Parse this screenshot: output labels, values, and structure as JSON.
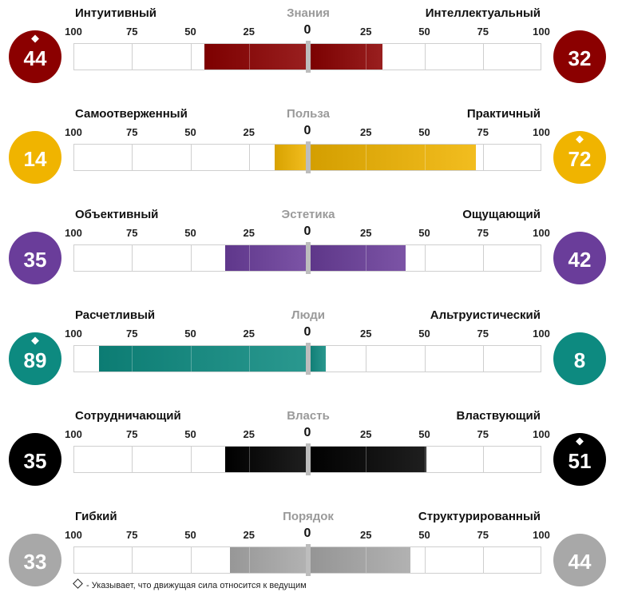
{
  "colors": {
    "knowledge": "#8b0000",
    "utility": "#f0b400",
    "aesthetics": "#6a3d9a",
    "people": "#0d8a80",
    "power": "#000000",
    "order": "#a8a8a8"
  },
  "chart_data": {
    "type": "bar",
    "subtype": "diverging",
    "axis_ticks": [
      "100",
      "75",
      "50",
      "25",
      "0",
      "25",
      "50",
      "75",
      "100"
    ],
    "range": [
      -100,
      100
    ],
    "series": [
      {
        "name": "Знания",
        "left_label": "Интуитивный",
        "right_label": "Интеллектуальный",
        "left_value": 44,
        "right_value": 32,
        "leading": "left",
        "color": "#8b0000"
      },
      {
        "name": "Польза",
        "left_label": "Самоотверженный",
        "right_label": "Практичный",
        "left_value": 14,
        "right_value": 72,
        "leading": "right",
        "color": "#f0b400"
      },
      {
        "name": "Эстетика",
        "left_label": "Объективный",
        "right_label": "Ощущающий",
        "left_value": 35,
        "right_value": 42,
        "leading": "",
        "color": "#6a3d9a"
      },
      {
        "name": "Люди",
        "left_label": "Расчетливый",
        "right_label": "Альтруистический",
        "left_value": 89,
        "right_value": 8,
        "leading": "left",
        "color": "#0d8a80"
      },
      {
        "name": "Власть",
        "left_label": "Сотрудничающий",
        "right_label": "Властвующий",
        "left_value": 35,
        "right_value": 51,
        "leading": "right",
        "color": "#000000"
      },
      {
        "name": "Порядок",
        "left_label": "Гибкий",
        "right_label": "Структурированный",
        "left_value": 33,
        "right_value": 44,
        "leading": "",
        "color": "#a8a8a8"
      }
    ]
  },
  "legend": {
    "text": "- Указывает, что движущая сила относится к ведущим"
  }
}
